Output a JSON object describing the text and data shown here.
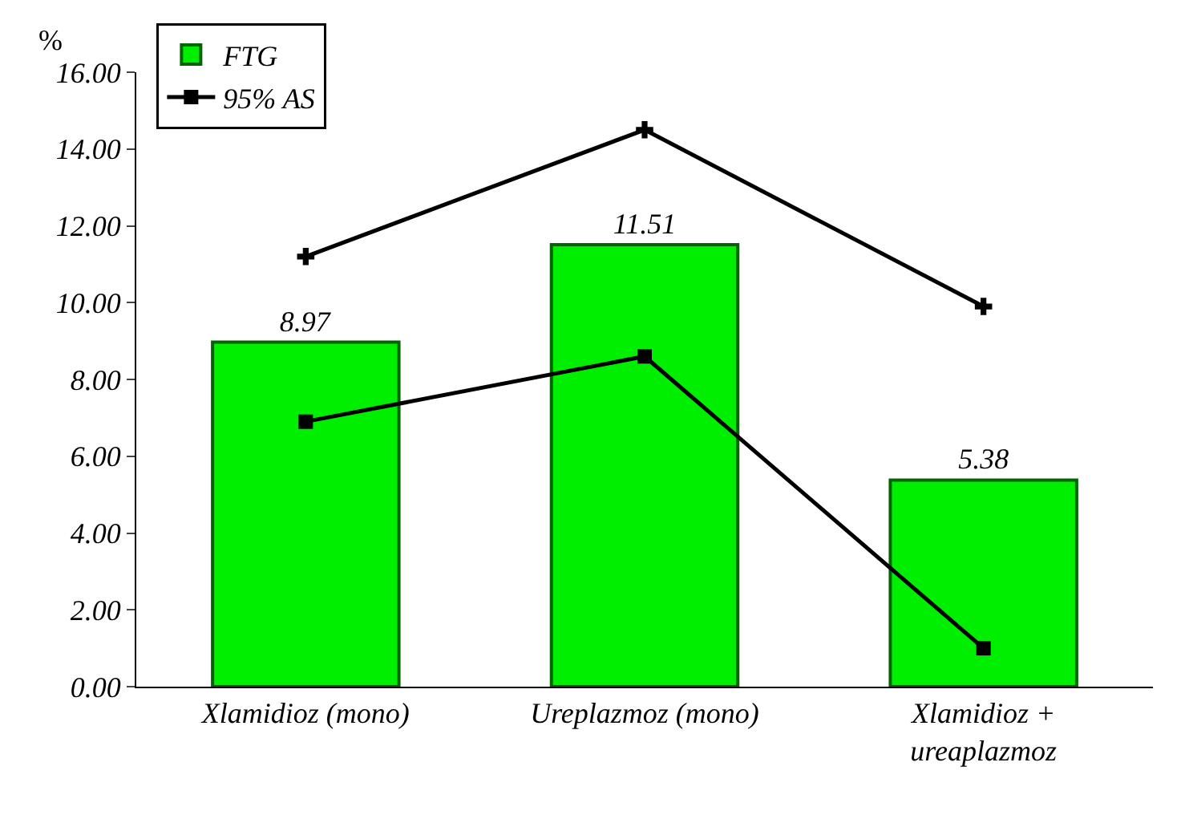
{
  "chart_data": {
    "type": "bar",
    "ylabel": "%",
    "categories": [
      "Xlamidioz (mono)",
      "Ureplazmoz (mono)",
      "Xlamidioz + ureaplazmoz"
    ],
    "series": [
      {
        "name": "FTG",
        "color": "#00ee00",
        "values": [
          8.97,
          11.51,
          5.38
        ],
        "value_labels": [
          "8.97",
          "11.51",
          "5.38"
        ]
      },
      {
        "name": "95% AS",
        "type": "line",
        "color": "#000000",
        "marker": "square",
        "values": [
          6.9,
          8.6,
          1.0
        ]
      },
      {
        "type": "line",
        "color": "#000000",
        "marker": "cross",
        "values": [
          11.2,
          14.5,
          9.9
        ]
      }
    ],
    "ylim": [
      0,
      16
    ],
    "yticks": [
      {
        "value": 0,
        "label": "0.00"
      },
      {
        "value": 2,
        "label": "2.00"
      },
      {
        "value": 4,
        "label": "4.00"
      },
      {
        "value": 6,
        "label": "6.00"
      },
      {
        "value": 8,
        "label": "8.00"
      },
      {
        "value": 10,
        "label": "10.00"
      },
      {
        "value": 12,
        "label": "12.00"
      },
      {
        "value": 14,
        "label": "14.00"
      },
      {
        "value": 16,
        "label": "16.00"
      }
    ],
    "legend": "top left"
  }
}
